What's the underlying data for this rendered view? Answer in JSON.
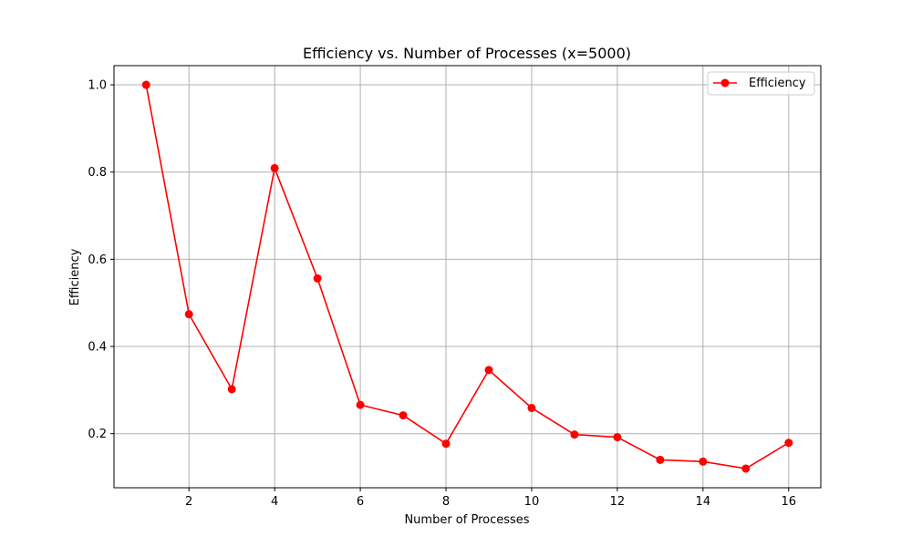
{
  "chart_data": {
    "type": "line",
    "title": "Efficiency vs. Number of Processes (x=5000)",
    "xlabel": "Number of Processes",
    "ylabel": "Efficiency",
    "x": [
      1,
      2,
      3,
      4,
      5,
      6,
      7,
      8,
      9,
      10,
      11,
      12,
      13,
      14,
      15,
      16
    ],
    "series": [
      {
        "name": "Efficiency",
        "color": "#ff0000",
        "marker": "circle",
        "values": [
          1.0,
          0.474,
          0.302,
          0.809,
          0.556,
          0.266,
          0.242,
          0.177,
          0.346,
          0.259,
          0.198,
          0.192,
          0.14,
          0.136,
          0.12,
          0.179
        ]
      }
    ],
    "xlim": [
      0.25,
      16.75
    ],
    "ylim": [
      0.076,
      1.044
    ],
    "xticks": [
      2,
      4,
      6,
      8,
      10,
      12,
      14,
      16
    ],
    "xtick_labels": [
      "2",
      "4",
      "6",
      "8",
      "10",
      "12",
      "14",
      "16"
    ],
    "yticks": [
      0.2,
      0.4,
      0.6,
      0.8,
      1.0
    ],
    "ytick_labels": [
      "0.2",
      "0.4",
      "0.6",
      "0.8",
      "1.0"
    ],
    "grid": true,
    "legend_position": "top-right"
  }
}
